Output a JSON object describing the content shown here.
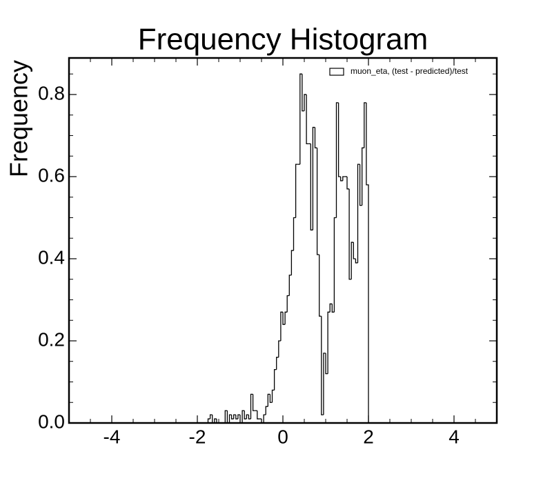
{
  "chart_data": {
    "type": "histogram",
    "title": "Frequency Histogram",
    "y_label": "Frequency",
    "histtype": "step",
    "color": "#000000",
    "name": "muon_eta, (test - predicted)/test",
    "legend_loc": "upper right",
    "bins": [
      -1.75,
      -1.7,
      -1.65,
      -1.6,
      -1.55,
      -1.5,
      -1.45,
      -1.4,
      -1.35,
      -1.3,
      -1.25,
      -1.2,
      -1.15,
      -1.1,
      -1.05,
      -1.0,
      -0.95,
      -0.9,
      -0.85,
      -0.8,
      -0.75,
      -0.7,
      -0.65,
      -0.6,
      -0.55,
      -0.5,
      -0.45,
      -0.4,
      -0.35,
      -0.3,
      -0.25,
      -0.2,
      -0.15,
      -0.1,
      -0.05,
      0.0,
      0.05,
      0.1,
      0.15,
      0.2,
      0.25,
      0.3,
      0.35,
      0.4,
      0.45,
      0.5,
      0.55,
      0.6,
      0.65,
      0.7,
      0.75,
      0.8,
      0.85,
      0.9,
      0.95,
      1.0,
      1.05,
      1.1,
      1.15,
      1.2,
      1.25,
      1.3,
      1.35,
      1.4,
      1.45,
      1.5,
      1.55,
      1.6,
      1.65,
      1.7,
      1.75,
      1.8,
      1.85,
      1.9,
      1.95,
      2.0
    ],
    "values": [
      0.01,
      0.02,
      0,
      0.01,
      0,
      0,
      0,
      0,
      0.03,
      0,
      0.02,
      0.01,
      0.02,
      0.01,
      0.02,
      0,
      0.03,
      0.01,
      0.02,
      0.01,
      0.07,
      0.03,
      0.03,
      0.01,
      0.01,
      0,
      0.02,
      0.04,
      0.07,
      0.05,
      0.08,
      0.13,
      0.16,
      0.2,
      0.27,
      0.24,
      0.27,
      0.31,
      0.36,
      0.42,
      0.5,
      0.63,
      0.63,
      0.85,
      0.76,
      0.8,
      0.68,
      0.68,
      0.47,
      0.72,
      0.67,
      0.41,
      0.26,
      0.02,
      0.17,
      0.12,
      0.27,
      0.29,
      0.27,
      0.5,
      0.78,
      0.6,
      0.59,
      0.6,
      0.6,
      0.57,
      0.35,
      0.44,
      0.4,
      0.39,
      0.63,
      0.53,
      0.67,
      0.78,
      0.58
    ],
    "xlim": [
      -5,
      5
    ],
    "ylim": [
      0,
      0.889
    ],
    "xticks": [
      -4,
      -2,
      0,
      2,
      4
    ],
    "yticks": [
      {
        "value": 0,
        "label": "0.0"
      },
      0.2,
      0.4,
      0.6,
      0.8
    ],
    "xminorticks": [
      -4.5,
      -3.5,
      -3,
      -2.5,
      -1.5,
      -1,
      -0.5,
      0.5,
      1,
      1.5,
      2.5,
      3,
      3.5,
      4.5
    ],
    "yminorticks": [
      0.05,
      0.1,
      0.15,
      0.25,
      0.3,
      0.35,
      0.45,
      0.5,
      0.55,
      0.65,
      0.7,
      0.75,
      0.85
    ]
  }
}
